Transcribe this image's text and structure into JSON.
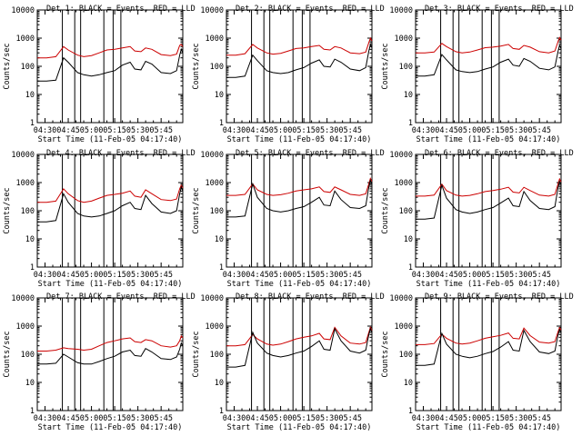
{
  "figure": {
    "background": "#ffffff",
    "events_color": "#000000",
    "lld_color": "#cc0000",
    "ylabel": "Counts/sec",
    "xlabel": "Start Time (11-Feb-05 04:17:40)",
    "x_tick_labels": [
      "04:30",
      "04:45",
      "05:00",
      "05:15",
      "05:30",
      "05:45"
    ],
    "y_tick_labels": [
      "1",
      "10",
      "100",
      "1000",
      "10000"
    ]
  },
  "chart_data": [
    {
      "type": "line",
      "title": "Det 1: BLACK = Events, RED = LLD",
      "xlabel": "Start Time (11-Feb-05 04:17:40)",
      "ylabel": "Counts/sec",
      "xlim": [
        0,
        94
      ],
      "ylim": [
        1,
        10000
      ],
      "yscale": "log",
      "x": [
        0,
        6,
        12,
        17,
        20,
        26,
        30,
        35,
        40,
        45,
        50,
        55,
        60,
        63,
        67,
        70,
        74,
        80,
        86,
        90,
        92,
        93,
        94
      ],
      "series": [
        {
          "name": "Events",
          "values": [
            30,
            30,
            32,
            200,
            140,
            60,
            50,
            45,
            50,
            60,
            70,
            110,
            140,
            80,
            75,
            150,
            120,
            60,
            55,
            70,
            250,
            400,
            300
          ]
        },
        {
          "name": "LLD",
          "values": [
            200,
            200,
            220,
            500,
            380,
            250,
            220,
            240,
            300,
            380,
            400,
            450,
            500,
            350,
            330,
            450,
            400,
            260,
            240,
            270,
            550,
            600,
            500
          ]
        }
      ],
      "marker_x": [
        16.2,
        24.2,
        28,
        43,
        49,
        54
      ]
    },
    {
      "type": "line",
      "title": "Det 2: BLACK = Events, RED = LLD",
      "xlabel": "Start Time (11-Feb-05 04:17:40)",
      "ylabel": "Counts/sec",
      "xlim": [
        0,
        94
      ],
      "ylim": [
        1,
        10000
      ],
      "yscale": "log",
      "x": [
        0,
        6,
        12,
        17,
        20,
        26,
        30,
        35,
        40,
        45,
        50,
        55,
        60,
        63,
        67,
        70,
        74,
        80,
        86,
        90,
        92,
        93,
        94
      ],
      "series": [
        {
          "name": "Events",
          "values": [
            40,
            40,
            45,
            250,
            160,
            70,
            60,
            55,
            60,
            75,
            90,
            130,
            170,
            100,
            95,
            180,
            140,
            80,
            70,
            90,
            350,
            600,
            450
          ]
        },
        {
          "name": "LLD",
          "values": [
            250,
            250,
            280,
            600,
            450,
            300,
            270,
            290,
            350,
            430,
            450,
            500,
            550,
            400,
            380,
            500,
            450,
            300,
            280,
            320,
            700,
            1000,
            800
          ]
        }
      ],
      "marker_x": [
        16.2,
        24.2,
        28,
        43,
        49,
        54
      ]
    },
    {
      "type": "line",
      "title": "Det 3: BLACK = Events, RED = LLD",
      "xlabel": "Start Time (11-Feb-05 04:17:40)",
      "ylabel": "Counts/sec",
      "xlim": [
        0,
        94
      ],
      "ylim": [
        1,
        10000
      ],
      "yscale": "log",
      "x": [
        0,
        6,
        12,
        17,
        20,
        26,
        30,
        35,
        40,
        45,
        50,
        55,
        60,
        63,
        67,
        70,
        74,
        80,
        86,
        90,
        92,
        93,
        94
      ],
      "series": [
        {
          "name": "Events",
          "values": [
            45,
            45,
            50,
            260,
            170,
            75,
            65,
            60,
            65,
            80,
            95,
            140,
            180,
            110,
            100,
            190,
            150,
            85,
            75,
            95,
            330,
            550,
            420
          ]
        },
        {
          "name": "LLD",
          "values": [
            300,
            300,
            320,
            650,
            500,
            330,
            300,
            320,
            380,
            460,
            480,
            520,
            600,
            430,
            400,
            550,
            480,
            330,
            300,
            350,
            750,
            1050,
            850
          ]
        }
      ],
      "marker_x": [
        16.2,
        24.2,
        28,
        43,
        49,
        54
      ]
    },
    {
      "type": "line",
      "title": "Det 4: BLACK = Events, RED = LLD",
      "xlabel": "Start Time (11-Feb-05 04:17:40)",
      "ylabel": "Counts/sec",
      "xlim": [
        0,
        94
      ],
      "ylim": [
        1,
        10000
      ],
      "yscale": "log",
      "x": [
        0,
        6,
        12,
        17,
        20,
        26,
        30,
        35,
        40,
        45,
        50,
        55,
        60,
        63,
        67,
        70,
        74,
        80,
        86,
        90,
        92,
        93,
        94
      ],
      "series": [
        {
          "name": "Events",
          "values": [
            40,
            40,
            45,
            400,
            200,
            80,
            65,
            60,
            65,
            80,
            100,
            150,
            200,
            120,
            110,
            350,
            180,
            90,
            80,
            100,
            400,
            700,
            500
          ]
        },
        {
          "name": "LLD",
          "values": [
            200,
            200,
            220,
            600,
            400,
            230,
            200,
            220,
            280,
            350,
            380,
            420,
            500,
            330,
            300,
            550,
            400,
            250,
            230,
            260,
            600,
            800,
            650
          ]
        }
      ],
      "marker_x": [
        16.2,
        24.2,
        28,
        43,
        49,
        54
      ]
    },
    {
      "type": "line",
      "title": "Det 5: BLACK = Events, RED = LLD",
      "xlabel": "Start Time (11-Feb-05 04:17:40)",
      "ylabel": "Counts/sec",
      "xlim": [
        0,
        94
      ],
      "ylim": [
        1,
        10000
      ],
      "yscale": "log",
      "x": [
        0,
        6,
        12,
        17,
        20,
        26,
        30,
        35,
        40,
        45,
        50,
        55,
        60,
        63,
        67,
        70,
        74,
        80,
        86,
        90,
        92,
        93,
        94
      ],
      "series": [
        {
          "name": "Events",
          "values": [
            60,
            60,
            65,
            900,
            300,
            120,
            100,
            90,
            100,
            120,
            140,
            200,
            300,
            160,
            150,
            500,
            250,
            130,
            120,
            150,
            700,
            1200,
            900
          ]
        },
        {
          "name": "LLD",
          "values": [
            350,
            350,
            380,
            900,
            550,
            380,
            350,
            370,
            420,
            500,
            550,
            600,
            700,
            480,
            450,
            700,
            550,
            380,
            350,
            400,
            900,
            1400,
            1100
          ]
        }
      ],
      "marker_x": [
        16.2,
        24.2,
        28,
        43,
        49,
        54
      ]
    },
    {
      "type": "line",
      "title": "Det 6: BLACK = Events, RED = LLD",
      "xlabel": "Start Time (11-Feb-05 04:17:40)",
      "ylabel": "Counts/sec",
      "xlim": [
        0,
        94
      ],
      "ylim": [
        1,
        10000
      ],
      "yscale": "log",
      "x": [
        0,
        6,
        12,
        17,
        20,
        26,
        30,
        35,
        40,
        45,
        50,
        55,
        60,
        63,
        67,
        70,
        74,
        80,
        86,
        90,
        92,
        93,
        94
      ],
      "series": [
        {
          "name": "Events",
          "values": [
            50,
            50,
            55,
            800,
            280,
            110,
            90,
            80,
            90,
            110,
            130,
            190,
            280,
            150,
            140,
            480,
            230,
            120,
            110,
            140,
            650,
            1100,
            850
          ]
        },
        {
          "name": "LLD",
          "values": [
            330,
            330,
            360,
            880,
            520,
            360,
            330,
            350,
            400,
            480,
            520,
            580,
            680,
            460,
            430,
            680,
            520,
            360,
            330,
            380,
            880,
            1350,
            1050
          ]
        }
      ],
      "marker_x": [
        16.2,
        24.2,
        28,
        43,
        49,
        54
      ]
    },
    {
      "type": "line",
      "title": "Det 7: BLACK = Events, RED = LLD",
      "xlabel": "Start Time (11-Feb-05 04:17:40)",
      "ylabel": "Counts/sec",
      "xlim": [
        0,
        94
      ],
      "ylim": [
        1,
        10000
      ],
      "yscale": "log",
      "x": [
        0,
        6,
        12,
        17,
        20,
        26,
        30,
        35,
        40,
        45,
        50,
        55,
        60,
        63,
        67,
        70,
        74,
        80,
        86,
        90,
        92,
        93,
        94
      ],
      "series": [
        {
          "name": "Events",
          "values": [
            45,
            45,
            48,
            100,
            80,
            50,
            45,
            45,
            55,
            70,
            85,
            120,
            140,
            90,
            85,
            160,
            120,
            70,
            65,
            80,
            150,
            250,
            200
          ]
        },
        {
          "name": "LLD",
          "values": [
            130,
            130,
            140,
            170,
            160,
            150,
            140,
            150,
            200,
            260,
            300,
            350,
            380,
            280,
            260,
            330,
            300,
            200,
            180,
            200,
            300,
            450,
            380
          ]
        }
      ],
      "marker_x": [
        16.2,
        24.2,
        28,
        43,
        49,
        54
      ]
    },
    {
      "type": "line",
      "title": "Det 8: BLACK = Events, RED = LLD",
      "xlabel": "Start Time (11-Feb-05 04:17:40)",
      "ylabel": "Counts/sec",
      "xlim": [
        0,
        94
      ],
      "ylim": [
        1,
        10000
      ],
      "yscale": "log",
      "x": [
        0,
        6,
        12,
        17,
        20,
        26,
        30,
        35,
        40,
        45,
        50,
        55,
        60,
        63,
        67,
        70,
        74,
        80,
        86,
        90,
        92,
        93,
        94
      ],
      "series": [
        {
          "name": "Events",
          "values": [
            35,
            35,
            40,
            600,
            250,
            110,
            90,
            80,
            90,
            110,
            130,
            190,
            300,
            150,
            140,
            800,
            300,
            130,
            110,
            140,
            500,
            800,
            600
          ]
        },
        {
          "name": "LLD",
          "values": [
            200,
            200,
            220,
            500,
            350,
            230,
            210,
            230,
            280,
            350,
            400,
            450,
            550,
            350,
            330,
            900,
            450,
            250,
            230,
            260,
            600,
            900,
            700
          ]
        }
      ],
      "marker_x": [
        16.2,
        24.2,
        28,
        43,
        49,
        54
      ]
    },
    {
      "type": "line",
      "title": "Det 9: BLACK = Events, RED = LLD",
      "xlabel": "Start Time (11-Feb-05 04:17:40)",
      "ylabel": "Counts/sec",
      "xlim": [
        0,
        94
      ],
      "ylim": [
        1,
        10000
      ],
      "yscale": "log",
      "x": [
        0,
        6,
        12,
        17,
        20,
        26,
        30,
        35,
        40,
        45,
        50,
        55,
        60,
        63,
        67,
        70,
        74,
        80,
        86,
        90,
        92,
        93,
        94
      ],
      "series": [
        {
          "name": "Events",
          "values": [
            40,
            40,
            45,
            550,
            230,
            100,
            85,
            75,
            85,
            105,
            125,
            180,
            280,
            140,
            130,
            700,
            280,
            120,
            105,
            130,
            480,
            750,
            580
          ]
        },
        {
          "name": "LLD",
          "values": [
            220,
            220,
            240,
            520,
            370,
            250,
            230,
            250,
            300,
            370,
            420,
            470,
            570,
            370,
            350,
            850,
            460,
            270,
            250,
            280,
            620,
            880,
            720
          ]
        }
      ],
      "marker_x": [
        16.2,
        24.2,
        28,
        43,
        49,
        54
      ]
    }
  ]
}
